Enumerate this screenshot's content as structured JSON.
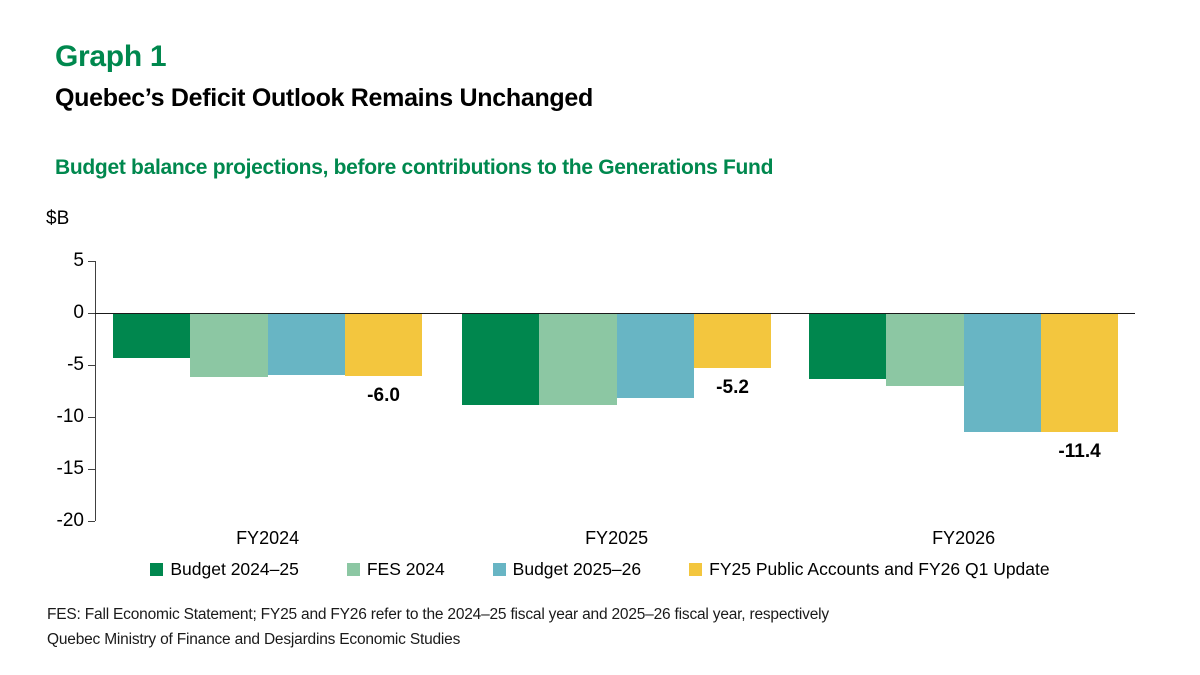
{
  "header": {
    "graph_label": "Graph 1",
    "title": "Quebec’s Deficit Outlook Remains Unchanged",
    "subtitle": "Budget balance projections, before contributions to the Generations Fund"
  },
  "colors": {
    "heading_green": "#00884E",
    "dark_green": "#00874E",
    "light_green": "#8CC7A3",
    "teal": "#68B5C4",
    "yellow": "#F3C63E",
    "axis": "#404040",
    "zero_line": "#1a1a1a"
  },
  "chart_data": {
    "type": "bar",
    "unit_label": "$B",
    "categories": [
      "FY2024",
      "FY2025",
      "FY2026"
    ],
    "series": [
      {
        "name": "Budget 2024–25",
        "color": "#00874E",
        "values": [
          -4.3,
          -8.8,
          -6.3
        ]
      },
      {
        "name": "FES 2024",
        "color": "#8CC7A3",
        "values": [
          -6.1,
          -8.8,
          -7.0
        ]
      },
      {
        "name": "Budget 2025–26",
        "color": "#68B5C4",
        "values": [
          -5.9,
          -8.1,
          -11.4
        ]
      },
      {
        "name": "FY25 Public Accounts and FY26 Q1 Update",
        "color": "#F3C63E",
        "values": [
          -6.0,
          -5.2,
          -11.4
        ]
      }
    ],
    "data_labels": {
      "on_series": "FY25 Public Accounts and FY26 Q1 Update",
      "values": [
        "-6.0",
        "-5.2",
        "-11.4"
      ]
    },
    "y_axis": {
      "max": 5,
      "min": -20,
      "ticks": [
        5,
        0,
        -5,
        -10,
        -15,
        -20
      ]
    },
    "grid": false,
    "legend_position": "bottom"
  },
  "footnotes": [
    "FES: Fall Economic Statement; FY25 and FY26 refer to the 2024–25 fiscal year and 2025–26 fiscal year, respectively",
    "Quebec Ministry of Finance and Desjardins Economic Studies"
  ]
}
